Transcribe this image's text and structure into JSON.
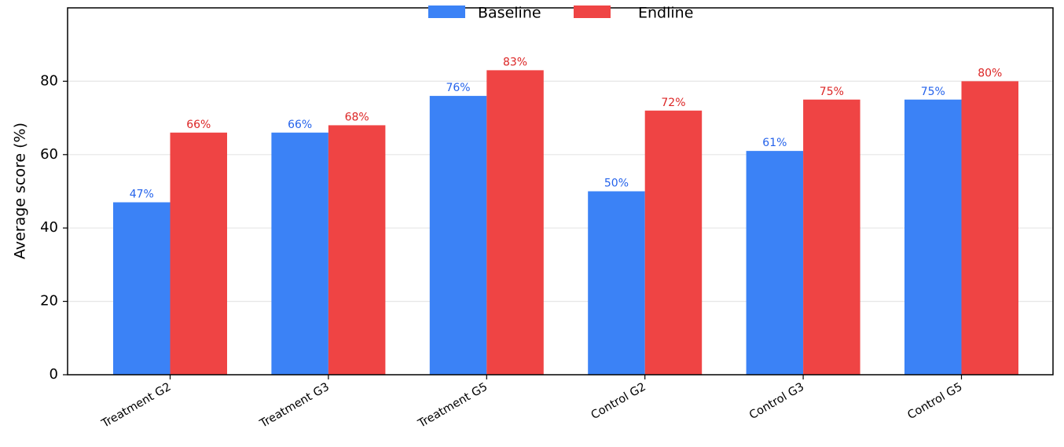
{
  "chart_data": {
    "type": "bar",
    "categories": [
      "Treatment G2",
      "Treatment G3",
      "Treatment G5",
      "Control G2",
      "Control G3",
      "Control G5"
    ],
    "series": [
      {
        "name": "Baseline",
        "values": [
          47,
          66,
          76,
          50,
          61,
          75
        ],
        "labels": [
          "47%",
          "66%",
          "76%",
          "50%",
          "61%",
          "75%"
        ],
        "color": "#3b82f6"
      },
      {
        "name": "Endline",
        "values": [
          66,
          68,
          83,
          72,
          75,
          80
        ],
        "labels": [
          "66%",
          "68%",
          "83%",
          "72%",
          "75%",
          "80%"
        ],
        "color": "#ef4444"
      }
    ],
    "ylabel": "Average score (%)",
    "ylim": [
      0,
      100
    ],
    "yticks": [
      0,
      20,
      40,
      60,
      80
    ],
    "grid": "horizontal",
    "legend": "top-center"
  }
}
